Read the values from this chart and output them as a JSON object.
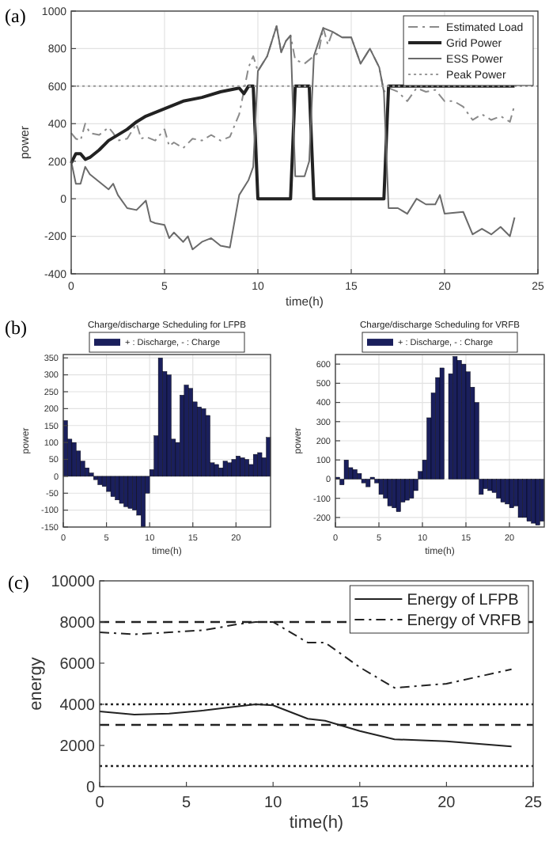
{
  "chart_data": [
    {
      "type": "line",
      "annotations": [
        "(a)"
      ],
      "xlabel": "time(h)",
      "ylabel": "power",
      "xlim": [
        0,
        25
      ],
      "xticks": [
        0,
        5,
        10,
        15,
        20,
        25
      ],
      "ylim": [
        -400,
        1000
      ],
      "yticks": [
        -400,
        -200,
        0,
        200,
        400,
        600,
        800,
        1000
      ],
      "grid": true,
      "legend": "top right",
      "series": [
        {
          "name": "Estimated Load",
          "color": "#8a8a8a",
          "line_style": "dashdot",
          "x": [
            0,
            0.25,
            0.5,
            0.75,
            1,
            1.5,
            2,
            2.25,
            2.5,
            3,
            3.5,
            3.75,
            4,
            4.5,
            5,
            5.25,
            5.5,
            6,
            6.5,
            7,
            7.5,
            8,
            8.5,
            9,
            9.5,
            9.75,
            10,
            10.5,
            11,
            11.25,
            11.5,
            11.75,
            12,
            12.5,
            13,
            13.25,
            13.5,
            13.75,
            14,
            14.5,
            15,
            15.5,
            16,
            16.5,
            16.75,
            17,
            17.5,
            18,
            18.5,
            19,
            19.5,
            20,
            20.5,
            21,
            21.5,
            22,
            22.5,
            23,
            23.5,
            23.75
          ],
          "values": [
            350,
            320,
            310,
            400,
            350,
            340,
            380,
            350,
            310,
            320,
            400,
            320,
            330,
            310,
            370,
            280,
            300,
            270,
            320,
            310,
            340,
            310,
            330,
            450,
            700,
            760,
            680,
            760,
            920,
            780,
            840,
            870,
            740,
            720,
            760,
            780,
            910,
            820,
            890,
            860,
            860,
            720,
            800,
            700,
            570,
            590,
            570,
            520,
            590,
            570,
            580,
            520,
            520,
            490,
            420,
            450,
            420,
            440,
            410,
            500
          ]
        },
        {
          "name": "Grid Power",
          "color": "#222222",
          "line_style": "solid",
          "x": [
            0,
            0.25,
            0.5,
            0.75,
            1,
            1.5,
            2,
            3,
            3.5,
            4,
            5,
            6,
            7,
            8,
            9,
            9.25,
            9.5,
            9.75,
            10,
            11.75,
            12,
            12.75,
            13,
            16.75,
            17,
            23.75
          ],
          "values": [
            190,
            240,
            240,
            210,
            220,
            260,
            310,
            370,
            410,
            440,
            480,
            520,
            540,
            570,
            590,
            560,
            600,
            600,
            0,
            0,
            600,
            600,
            0,
            0,
            600,
            600
          ]
        },
        {
          "name": "ESS Power",
          "color": "#6a6a6a",
          "line_style": "solid",
          "x": [
            0,
            0.25,
            0.5,
            0.75,
            1,
            1.5,
            2,
            2.25,
            2.5,
            3,
            3.5,
            4,
            4.25,
            4.5,
            5,
            5.25,
            5.5,
            6,
            6.25,
            6.5,
            7,
            7.5,
            8,
            8.5,
            9,
            9.5,
            9.75,
            10,
            10.5,
            11,
            11.25,
            11.5,
            11.75,
            12,
            12.5,
            12.75,
            13,
            13.5,
            14,
            14.5,
            15,
            15.5,
            16,
            16.5,
            16.75,
            17,
            17.5,
            18,
            18.5,
            19,
            19.5,
            19.75,
            20,
            21,
            21.5,
            22,
            22.5,
            23,
            23.5,
            23.75
          ],
          "values": [
            200,
            80,
            80,
            170,
            130,
            90,
            50,
            80,
            20,
            -50,
            -60,
            -10,
            -120,
            -130,
            -140,
            -210,
            -180,
            -230,
            -200,
            -270,
            -230,
            -210,
            -250,
            -260,
            20,
            100,
            170,
            680,
            760,
            920,
            780,
            840,
            870,
            120,
            120,
            200,
            760,
            910,
            890,
            860,
            860,
            720,
            800,
            700,
            570,
            -50,
            -50,
            -80,
            0,
            -30,
            -30,
            20,
            -80,
            -70,
            -190,
            -160,
            -190,
            -150,
            -200,
            -100
          ]
        },
        {
          "name": "Peak Power",
          "color": "#9a9a9a",
          "line_style": "dotted",
          "x": [
            0,
            25
          ],
          "values": [
            600,
            600
          ]
        }
      ]
    },
    {
      "type": "bar",
      "title": "Charge/discharge Scheduling for LFPB",
      "xlabel": "time(h)",
      "ylabel": "power",
      "xlim": [
        0,
        24
      ],
      "xticks": [
        0,
        5,
        10,
        15,
        20
      ],
      "ylim": [
        -150,
        360
      ],
      "yticks": [
        -150,
        -100,
        -50,
        0,
        50,
        100,
        150,
        200,
        250,
        300,
        350
      ],
      "grid": true,
      "legend": "top",
      "annotations": [
        "(b)"
      ],
      "x": [
        0.25,
        0.75,
        1.25,
        1.75,
        2.25,
        2.75,
        3.25,
        3.75,
        4.25,
        4.75,
        5.25,
        5.75,
        6.25,
        6.75,
        7.25,
        7.75,
        8.25,
        8.75,
        9.25,
        9.75,
        10.25,
        10.75,
        11.25,
        11.75,
        12.25,
        12.75,
        13.25,
        13.75,
        14.25,
        14.75,
        15.25,
        15.75,
        16.25,
        16.75,
        17.25,
        17.75,
        18.25,
        18.75,
        19.25,
        19.75,
        20.25,
        20.75,
        21.25,
        21.75,
        22.25,
        22.75,
        23.25,
        23.75
      ],
      "series": [
        {
          "name": "+ : Discharge, - : Charge",
          "color": "#1a1f5c",
          "values": [
            165,
            110,
            100,
            75,
            45,
            25,
            10,
            -10,
            -25,
            -30,
            -45,
            -60,
            -70,
            -80,
            -90,
            -95,
            -100,
            -115,
            -150,
            -50,
            20,
            120,
            350,
            310,
            300,
            110,
            100,
            240,
            270,
            260,
            220,
            205,
            200,
            180,
            40,
            35,
            25,
            45,
            40,
            50,
            60,
            55,
            50,
            35,
            65,
            70,
            55,
            115
          ]
        }
      ]
    },
    {
      "type": "bar",
      "title": "Charge/discharge Scheduling for VRFB",
      "xlabel": "time(h)",
      "ylabel": "power",
      "xlim": [
        0,
        24
      ],
      "xticks": [
        0,
        5,
        10,
        15,
        20
      ],
      "ylim": [
        -250,
        650
      ],
      "yticks": [
        -200,
        -100,
        0,
        100,
        200,
        300,
        400,
        500,
        600
      ],
      "grid": true,
      "legend": "top",
      "x": [
        0.25,
        0.75,
        1.25,
        1.75,
        2.25,
        2.75,
        3.25,
        3.75,
        4.25,
        4.75,
        5.25,
        5.75,
        6.25,
        6.75,
        7.25,
        7.75,
        8.25,
        8.75,
        9.25,
        9.75,
        10.25,
        10.75,
        11.25,
        11.75,
        12.25,
        12.75,
        13.25,
        13.75,
        14.25,
        14.75,
        15.25,
        15.75,
        16.25,
        16.75,
        17.25,
        17.75,
        18.25,
        18.75,
        19.25,
        19.75,
        20.25,
        20.75,
        21.25,
        21.75,
        22.25,
        22.75,
        23.25,
        23.75
      ],
      "series": [
        {
          "name": "+ : Discharge, - : Charge",
          "color": "#1a1f5c",
          "values": [
            10,
            -30,
            100,
            60,
            50,
            30,
            -20,
            -40,
            10,
            -20,
            -80,
            -100,
            -140,
            -150,
            -170,
            -120,
            -110,
            -100,
            -60,
            40,
            100,
            320,
            450,
            530,
            580,
            0,
            550,
            640,
            620,
            600,
            560,
            480,
            400,
            -80,
            -50,
            -60,
            -70,
            -100,
            -120,
            -130,
            -150,
            -140,
            -200,
            -200,
            -220,
            -230,
            -240,
            -220
          ]
        }
      ]
    },
    {
      "type": "line",
      "annotations": [
        "(c)"
      ],
      "xlabel": "time(h)",
      "ylabel": "energy",
      "xlim": [
        0,
        25
      ],
      "xticks": [
        0,
        5,
        10,
        15,
        20,
        25
      ],
      "ylim": [
        0,
        10000
      ],
      "yticks": [
        0,
        2000,
        4000,
        6000,
        8000,
        10000
      ],
      "legend": "top right",
      "series": [
        {
          "name": "Energy of LFPB",
          "color": "#222222",
          "line_style": "solid",
          "x": [
            0,
            2,
            4,
            6,
            8,
            9,
            10,
            12,
            13,
            15,
            17,
            20,
            23.75
          ],
          "values": [
            3650,
            3500,
            3550,
            3700,
            3900,
            4000,
            3950,
            3300,
            3200,
            2700,
            2300,
            2200,
            1950
          ]
        },
        {
          "name": "Energy of VRFB",
          "color": "#222222",
          "line_style": "dashdot",
          "x": [
            0,
            2,
            4,
            6,
            8,
            9,
            10,
            12,
            13,
            15,
            17,
            20,
            23.75
          ],
          "values": [
            7500,
            7400,
            7500,
            7600,
            7900,
            8000,
            8000,
            7000,
            7000,
            5800,
            4800,
            5000,
            5700
          ]
        }
      ],
      "ref_lines": [
        {
          "axis": "y",
          "value": 8000,
          "color": "#222222",
          "line_style": "dashed"
        },
        {
          "axis": "y",
          "value": 3000,
          "color": "#222222",
          "line_style": "dashed"
        },
        {
          "axis": "y",
          "value": 4000,
          "color": "#222222",
          "line_style": "dotted"
        },
        {
          "axis": "y",
          "value": 1000,
          "color": "#222222",
          "line_style": "dotted"
        }
      ]
    }
  ]
}
